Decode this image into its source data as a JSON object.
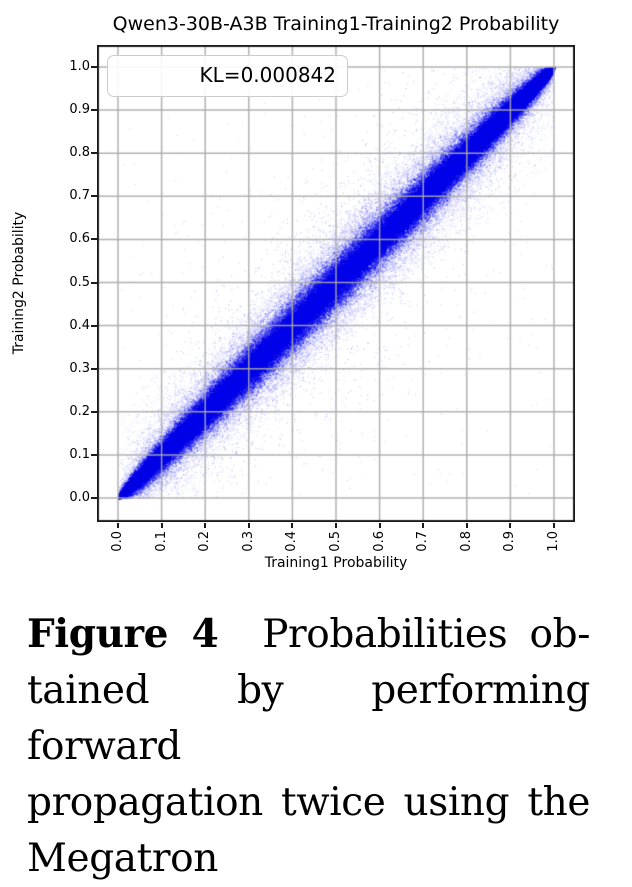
{
  "chart_data": {
    "type": "scatter",
    "title": "Qwen3-30B-A3B Training1-Training2 Probability",
    "xlabel": "Training1 Probability",
    "ylabel": "Training2 Probability",
    "xlim": [
      0.0,
      1.0
    ],
    "ylim": [
      0.0,
      1.0
    ],
    "x_tick_labels": [
      "0.0",
      "0.1",
      "0.2",
      "0.3",
      "0.4",
      "0.5",
      "0.6",
      "0.7",
      "0.8",
      "0.9",
      "1.0"
    ],
    "y_tick_labels": [
      "0.0",
      "0.1",
      "0.2",
      "0.3",
      "0.4",
      "0.5",
      "0.6",
      "0.7",
      "0.8",
      "0.9",
      "1.0"
    ],
    "grid": true,
    "grid_color": "#b4b4b4",
    "legend": {
      "label": "KL=0.000842",
      "position": "upper left"
    },
    "kl_divergence": 0.000842,
    "point_color": "#0000f0",
    "relationship": "Training2 probability tracks Training1 probability along the y=x identity diagonal: a dense solid-blue lens-shaped band, widest (about ±0.05) near 0.5 and converging to points at (0,0) and (1,1), surrounded by a diffuse speckled halo, faint ray-like streaks fanning out of both corners, and sparse isolated outliers up to ±0.3 off the diagonal",
    "render_params": {
      "core_points": 120000,
      "core_sigma_mid": 0.026,
      "spine_points": 40000,
      "spine_sigma_mid": 0.01,
      "halo_points": 40000,
      "halo_sigma_mid": 0.055,
      "corner_streaks": 240,
      "parallel_streaks": 130,
      "near_outliers": 3200,
      "near_outlier_sigma": 0.12,
      "far_outliers": 800,
      "far_outlier_sigma": 0.3,
      "uniform_speckle": 250,
      "seed": 1234
    }
  },
  "caption": {
    "label": "Figure 4",
    "line1_rest": "Probabilities ob-",
    "line2": "tained by performing forward",
    "line3": "propagation twice using the",
    "line4": "Megatron",
    "full_text": "Figure 4  Probabilities obtained by performing forward propagation twice using the Megatron"
  }
}
